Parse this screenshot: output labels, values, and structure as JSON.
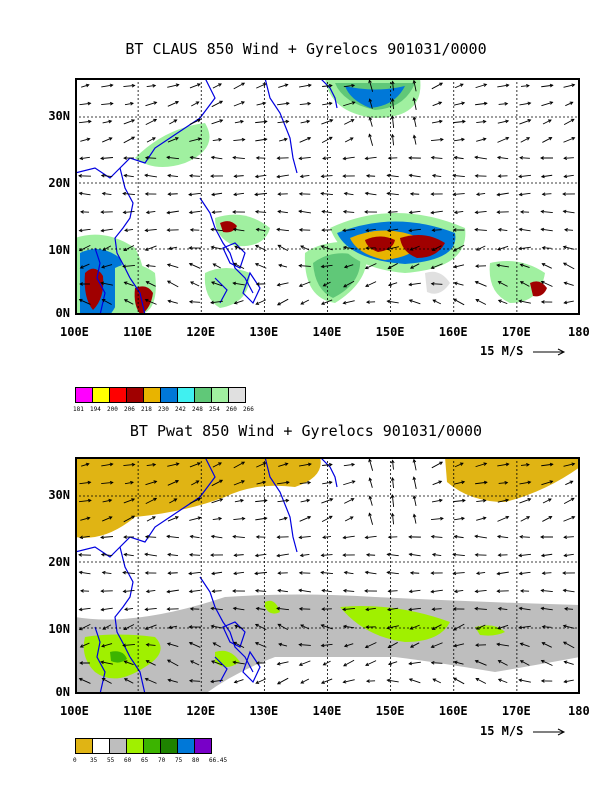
{
  "panels": [
    {
      "title": "BT CLAUS 850 Wind + Gyrelocs 901031/0000",
      "lat_labels": [
        "30N",
        "20N",
        "10N",
        "0N"
      ],
      "lon_labels": [
        "100E",
        "110E",
        "120E",
        "130E",
        "140E",
        "150E",
        "160E",
        "170E",
        "180"
      ],
      "scale_label": "15 M/S",
      "colorbar_labels": [
        "181",
        "194",
        "200",
        "206",
        "218",
        "230",
        "242",
        "248",
        "254",
        "260",
        "266"
      ],
      "colorbar_colors": [
        "#ff00ff",
        "#ffff00",
        "#ff0000",
        "#a00000",
        "#e8b400",
        "#0078d8",
        "#40f0f0",
        "#60c878",
        "#a0f0a0",
        "#e0e0e0"
      ]
    },
    {
      "title": "BT Pwat 850 Wind + Gyrelocs 901031/0000",
      "lat_labels": [
        "30N",
        "20N",
        "10N",
        "0N"
      ],
      "lon_labels": [
        "100E",
        "110E",
        "120E",
        "130E",
        "140E",
        "150E",
        "160E",
        "170E",
        "180"
      ],
      "scale_label": "15 M/S",
      "colorbar_labels": [
        "0",
        "35",
        "55",
        "60",
        "65",
        "70",
        "75",
        "80",
        "66.45"
      ],
      "colorbar_colors": [
        "#e0b414",
        "#ffffff",
        "#bebebe",
        "#a0f000",
        "#3cb400",
        "#1e8200",
        "#0078d8",
        "#7800c8"
      ]
    }
  ]
}
